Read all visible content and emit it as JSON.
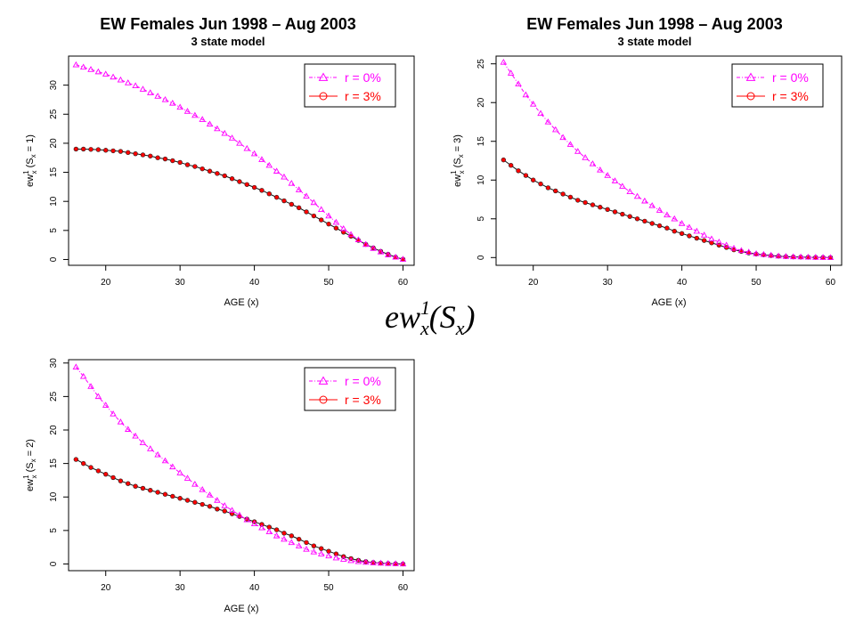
{
  "formula": {
    "base": "ew",
    "sup": "1",
    "sub": "x",
    "arg": "(S",
    "arg_sub": "x",
    "close": ")"
  },
  "colors": {
    "r0": "#ff00ff",
    "r3": "#ff0000",
    "r3_line": "#111111"
  },
  "chart_data": [
    {
      "type": "line",
      "title": "EW Females Jun 1998 – Aug 2003",
      "subtitle": "3 state model",
      "xlabel": "AGE (x)",
      "ylabel": {
        "text": "ew",
        "sup": "1",
        "sub": "x",
        "arg": " (S",
        "arg_sub": "x",
        "tail": " = 1)"
      },
      "xlim": [
        15,
        61.5
      ],
      "ylim": [
        -1,
        35
      ],
      "xticks": [
        20,
        30,
        40,
        50,
        60
      ],
      "yticks": [
        0,
        5,
        10,
        15,
        20,
        25,
        30
      ],
      "legend": {
        "position": "top-right",
        "items": [
          "r = 0%",
          "r = 3%"
        ]
      },
      "x": [
        16,
        17,
        18,
        19,
        20,
        21,
        22,
        23,
        24,
        25,
        26,
        27,
        28,
        29,
        30,
        31,
        32,
        33,
        34,
        35,
        36,
        37,
        38,
        39,
        40,
        41,
        42,
        43,
        44,
        45,
        46,
        47,
        48,
        49,
        50,
        51,
        52,
        53,
        54,
        55,
        56,
        57,
        58,
        59,
        60
      ],
      "series": [
        {
          "name": "r = 0%",
          "values": [
            33.5,
            33.1,
            32.7,
            32.3,
            31.9,
            31.4,
            30.9,
            30.4,
            29.9,
            29.3,
            28.7,
            28.1,
            27.5,
            26.9,
            26.2,
            25.5,
            24.8,
            24.1,
            23.3,
            22.5,
            21.7,
            20.9,
            20.0,
            19.1,
            18.2,
            17.2,
            16.2,
            15.2,
            14.2,
            13.1,
            12.0,
            10.9,
            9.8,
            8.6,
            7.5,
            6.4,
            5.3,
            4.3,
            3.4,
            2.6,
            1.9,
            1.3,
            0.8,
            0.4,
            0.05
          ]
        },
        {
          "name": "r = 3%",
          "values": [
            19.0,
            19.0,
            18.95,
            18.9,
            18.8,
            18.7,
            18.6,
            18.4,
            18.2,
            18.0,
            17.8,
            17.5,
            17.3,
            17.0,
            16.7,
            16.3,
            16.0,
            15.6,
            15.2,
            14.8,
            14.4,
            13.9,
            13.4,
            12.9,
            12.4,
            11.9,
            11.3,
            10.7,
            10.1,
            9.5,
            8.9,
            8.2,
            7.5,
            6.8,
            6.1,
            5.4,
            4.7,
            4.0,
            3.3,
            2.6,
            2.0,
            1.4,
            0.9,
            0.4,
            0.05
          ]
        }
      ]
    },
    {
      "type": "line",
      "title": "EW Females Jun 1998 – Aug 2003",
      "subtitle": "3 state model",
      "xlabel": "AGE (x)",
      "ylabel": {
        "text": "ew",
        "sup": "1",
        "sub": "x",
        "arg": " (S",
        "arg_sub": "x",
        "tail": " = 3)"
      },
      "xlim": [
        15,
        61.5
      ],
      "ylim": [
        -1,
        26
      ],
      "xticks": [
        20,
        30,
        40,
        50,
        60
      ],
      "yticks": [
        0,
        5,
        10,
        15,
        20,
        25
      ],
      "legend": {
        "position": "top-right",
        "items": [
          "r = 0%",
          "r = 3%"
        ]
      },
      "x": [
        16,
        17,
        18,
        19,
        20,
        21,
        22,
        23,
        24,
        25,
        26,
        27,
        28,
        29,
        30,
        31,
        32,
        33,
        34,
        35,
        36,
        37,
        38,
        39,
        40,
        41,
        42,
        43,
        44,
        45,
        46,
        47,
        48,
        49,
        50,
        51,
        52,
        53,
        54,
        55,
        56,
        57,
        58,
        59,
        60
      ],
      "series": [
        {
          "name": "r = 0%",
          "values": [
            25.2,
            23.8,
            22.4,
            21.0,
            19.8,
            18.6,
            17.5,
            16.5,
            15.5,
            14.6,
            13.7,
            12.9,
            12.1,
            11.3,
            10.6,
            9.9,
            9.2,
            8.5,
            7.9,
            7.3,
            6.7,
            6.1,
            5.5,
            5.0,
            4.4,
            3.9,
            3.4,
            2.9,
            2.4,
            2.0,
            1.6,
            1.2,
            0.9,
            0.7,
            0.5,
            0.4,
            0.3,
            0.2,
            0.15,
            0.1,
            0.08,
            0.05,
            0.03,
            0.02,
            0.0
          ]
        },
        {
          "name": "r = 3%",
          "values": [
            12.6,
            11.9,
            11.2,
            10.6,
            10.0,
            9.5,
            9.0,
            8.6,
            8.2,
            7.8,
            7.4,
            7.1,
            6.8,
            6.5,
            6.2,
            5.9,
            5.6,
            5.3,
            5.0,
            4.7,
            4.4,
            4.1,
            3.8,
            3.4,
            3.1,
            2.8,
            2.5,
            2.2,
            1.9,
            1.6,
            1.3,
            1.0,
            0.8,
            0.6,
            0.45,
            0.35,
            0.25,
            0.18,
            0.12,
            0.08,
            0.06,
            0.04,
            0.02,
            0.01,
            0.0
          ]
        }
      ]
    },
    {
      "type": "line",
      "title": "",
      "subtitle": "",
      "xlabel": "AGE (x)",
      "ylabel": {
        "text": "ew",
        "sup": "1",
        "sub": "x",
        "arg": " (S",
        "arg_sub": "x",
        "tail": " = 2)"
      },
      "xlim": [
        15,
        61.5
      ],
      "ylim": [
        -1,
        30.5
      ],
      "xticks": [
        20,
        30,
        40,
        50,
        60
      ],
      "yticks": [
        0,
        5,
        10,
        15,
        20,
        25,
        30
      ],
      "legend": {
        "position": "top-right",
        "items": [
          "r = 0%",
          "r = 3%"
        ]
      },
      "x": [
        16,
        17,
        18,
        19,
        20,
        21,
        22,
        23,
        24,
        25,
        26,
        27,
        28,
        29,
        30,
        31,
        32,
        33,
        34,
        35,
        36,
        37,
        38,
        39,
        40,
        41,
        42,
        43,
        44,
        45,
        46,
        47,
        48,
        49,
        50,
        51,
        52,
        53,
        54,
        55,
        56,
        57,
        58,
        59,
        60
      ],
      "series": [
        {
          "name": "r = 0%",
          "values": [
            29.4,
            28.0,
            26.5,
            25.0,
            23.7,
            22.4,
            21.2,
            20.1,
            19.1,
            18.1,
            17.2,
            16.3,
            15.4,
            14.5,
            13.6,
            12.8,
            11.9,
            11.1,
            10.3,
            9.5,
            8.7,
            8.0,
            7.3,
            6.6,
            6.0,
            5.4,
            4.8,
            4.2,
            3.7,
            3.2,
            2.7,
            2.2,
            1.8,
            1.5,
            1.2,
            0.9,
            0.7,
            0.5,
            0.35,
            0.25,
            0.18,
            0.12,
            0.08,
            0.04,
            0.0
          ]
        },
        {
          "name": "r = 3%",
          "values": [
            15.6,
            15.0,
            14.4,
            13.9,
            13.4,
            12.9,
            12.4,
            12.0,
            11.6,
            11.3,
            11.0,
            10.7,
            10.4,
            10.1,
            9.8,
            9.5,
            9.2,
            8.9,
            8.6,
            8.2,
            7.9,
            7.5,
            7.1,
            6.7,
            6.3,
            5.9,
            5.5,
            5.1,
            4.6,
            4.2,
            3.7,
            3.2,
            2.7,
            2.3,
            1.9,
            1.5,
            1.1,
            0.8,
            0.55,
            0.35,
            0.22,
            0.13,
            0.07,
            0.03,
            0.0
          ]
        }
      ]
    }
  ]
}
